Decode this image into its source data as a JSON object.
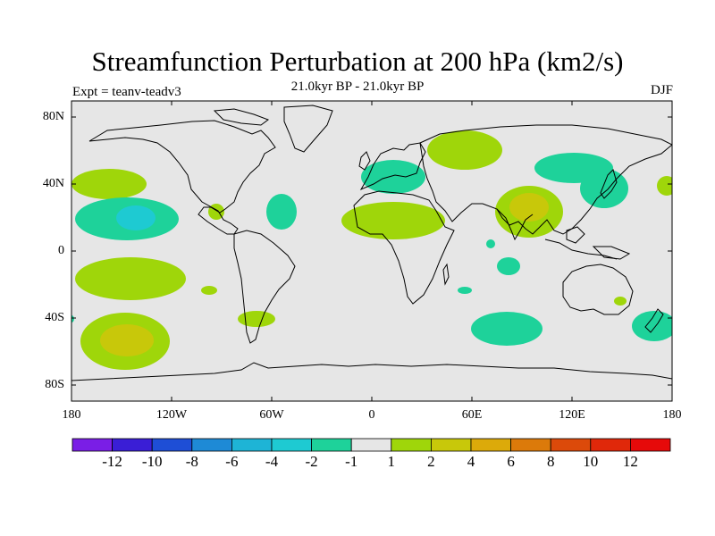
{
  "title": "Streamfunction Perturbation at 200 hPa (km2/s)",
  "subtitle": "21.0kyr BP - 21.0kyr BP",
  "experiment": "Expt = teanv-teadv3",
  "season": "DJF",
  "lat_labels": [
    "80N",
    "40N",
    "0",
    "40S",
    "80S"
  ],
  "lon_labels": [
    "180",
    "120W",
    "60W",
    "0",
    "60E",
    "120E",
    "180"
  ],
  "colorbar": {
    "labels": [
      "-12",
      "-10",
      "-8",
      "-6",
      "-4",
      "-2",
      "-1",
      "1",
      "2",
      "4",
      "6",
      "8",
      "10",
      "12"
    ],
    "colors": [
      "#7a1ee6",
      "#3a1ed6",
      "#1e4ed6",
      "#1e8ad6",
      "#1eb4d6",
      "#1ecad2",
      "#1ed29a",
      "#e6e6e6",
      "#9fd60a",
      "#c8c80a",
      "#dcaa0a",
      "#dc7a0a",
      "#dc4a0a",
      "#e0280a",
      "#e60a0a"
    ]
  },
  "colors": {
    "ocean": "#e6e6e6",
    "neg_1_2": "#1ed29a",
    "neg_2_4": "#1ecad2",
    "pos_1_2": "#9fd60a",
    "pos_2_4": "#c8c80a",
    "pos_4_6": "#dcaa0a"
  }
}
